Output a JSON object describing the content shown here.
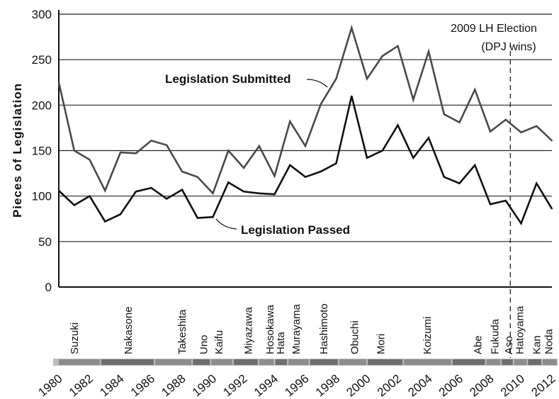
{
  "chart_data": {
    "type": "line",
    "title": "",
    "xlabel": "",
    "ylabel": "Pieces of Legislation",
    "xlim": [
      1980,
      2012
    ],
    "ylim": [
      0,
      300
    ],
    "yticks": [
      0,
      50,
      100,
      150,
      200,
      250,
      300
    ],
    "xticks": [
      "1980",
      "1982",
      "1984",
      "1986",
      "1988",
      "1990",
      "1992",
      "1994",
      "1996",
      "1998",
      "2000",
      "2002",
      "2004",
      "2006",
      "2008",
      "2010",
      "2012"
    ],
    "grid": "horizontal",
    "x": [
      1980,
      1981,
      1982,
      1983,
      1984,
      1985,
      1986,
      1987,
      1988,
      1989,
      1990,
      1991,
      1992,
      1993,
      1994,
      1995,
      1996,
      1997,
      1998,
      1999,
      2000,
      2001,
      2002,
      2003,
      2004,
      2005,
      2006,
      2007,
      2008,
      2009,
      2010,
      2011,
      2012
    ],
    "series": [
      {
        "name": "Legislation Submitted",
        "values": [
          225,
          150,
          140,
          106,
          148,
          147,
          161,
          156,
          127,
          121,
          103,
          150,
          131,
          155,
          122,
          182,
          155,
          201,
          229,
          285,
          229,
          254,
          265,
          206,
          259,
          190,
          181,
          217,
          171,
          184,
          170,
          177,
          161
        ]
      },
      {
        "name": "Legislation Passed",
        "values": [
          106,
          90,
          100,
          72,
          80,
          105,
          109,
          97,
          107,
          76,
          77,
          115,
          105,
          103,
          102,
          134,
          121,
          127,
          136,
          210,
          142,
          150,
          178,
          142,
          164,
          121,
          114,
          134,
          91,
          95,
          70,
          114,
          86
        ]
      }
    ],
    "annotations": {
      "event_line1": "2009 LH Election",
      "event_line2": "(DPJ wins)",
      "event_year": 2009.3
    },
    "prime_ministers": [
      {
        "name": "Suzuki",
        "year": 1981.0
      },
      {
        "name": "Nakasone",
        "year": 1984.5
      },
      {
        "name": "Takeshita",
        "year": 1988.0
      },
      {
        "name": "Uno",
        "year": 1989.4
      },
      {
        "name": "Kaifu",
        "year": 1990.4
      },
      {
        "name": "Miyazawa",
        "year": 1992.3
      },
      {
        "name": "Hosokawa",
        "year": 1993.7
      },
      {
        "name": "Hata",
        "year": 1994.4
      },
      {
        "name": "Murayama",
        "year": 1995.4
      },
      {
        "name": "Hashimoto",
        "year": 1997.2
      },
      {
        "name": "Obuchi",
        "year": 1999.2
      },
      {
        "name": "Mori",
        "year": 2000.9
      },
      {
        "name": "Koizumi",
        "year": 2003.9
      },
      {
        "name": "Abe",
        "year": 2007.2
      },
      {
        "name": "Fukuda",
        "year": 2008.3
      },
      {
        "name": "Aso",
        "year": 2009.2
      },
      {
        "name": "Hatoyama",
        "year": 2009.9
      },
      {
        "name": "Kan",
        "year": 2011.0
      },
      {
        "name": "Noda",
        "year": 2011.8
      }
    ]
  }
}
